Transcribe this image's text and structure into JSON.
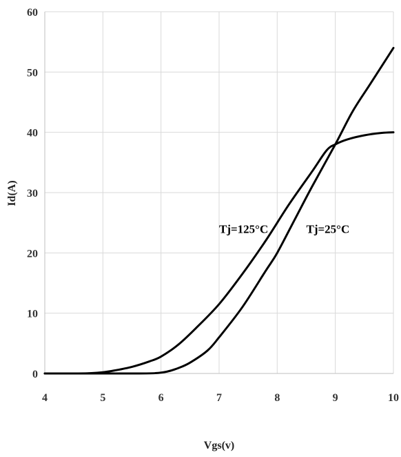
{
  "chart_data": {
    "type": "line",
    "title": "",
    "xlabel": "Vgs(v)",
    "ylabel": "Id(A)",
    "xlim": [
      4,
      10
    ],
    "ylim": [
      0,
      60
    ],
    "xticks": [
      4,
      5,
      6,
      7,
      8,
      9,
      10
    ],
    "yticks": [
      0,
      10,
      20,
      30,
      40,
      50,
      60
    ],
    "grid": true,
    "legend": "none",
    "series": [
      {
        "name": "Tj=125°C",
        "x": [
          4.0,
          4.5,
          4.8,
          5.0,
          5.2,
          5.5,
          5.8,
          6.0,
          6.3,
          6.6,
          7.0,
          7.4,
          7.8,
          8.2,
          8.6,
          8.85,
          9.0,
          9.2,
          9.5,
          9.8,
          10.0
        ],
        "y": [
          0,
          0,
          0.05,
          0.2,
          0.5,
          1.1,
          2.0,
          2.8,
          4.8,
          7.5,
          11.5,
          16.5,
          22.0,
          28.0,
          33.5,
          37.0,
          38.0,
          38.8,
          39.5,
          39.9,
          40.0
        ],
        "color": "#000000"
      },
      {
        "name": "Tj=25°C",
        "x": [
          4.0,
          5.5,
          5.9,
          6.1,
          6.3,
          6.5,
          6.8,
          7.0,
          7.4,
          7.8,
          8.0,
          8.3,
          8.6,
          9.0,
          9.3,
          9.6,
          10.0
        ],
        "y": [
          0,
          0,
          0.05,
          0.3,
          0.9,
          1.8,
          3.8,
          6.0,
          11.0,
          17.0,
          20.0,
          25.5,
          31.0,
          38.0,
          43.5,
          48.0,
          54.0
        ],
        "color": "#000000"
      }
    ],
    "annotations": [
      {
        "text": "Tj=125°C",
        "x": 7.0,
        "y": 23.3
      },
      {
        "text": "Tj=25°C",
        "x": 8.5,
        "y": 23.3
      }
    ]
  }
}
